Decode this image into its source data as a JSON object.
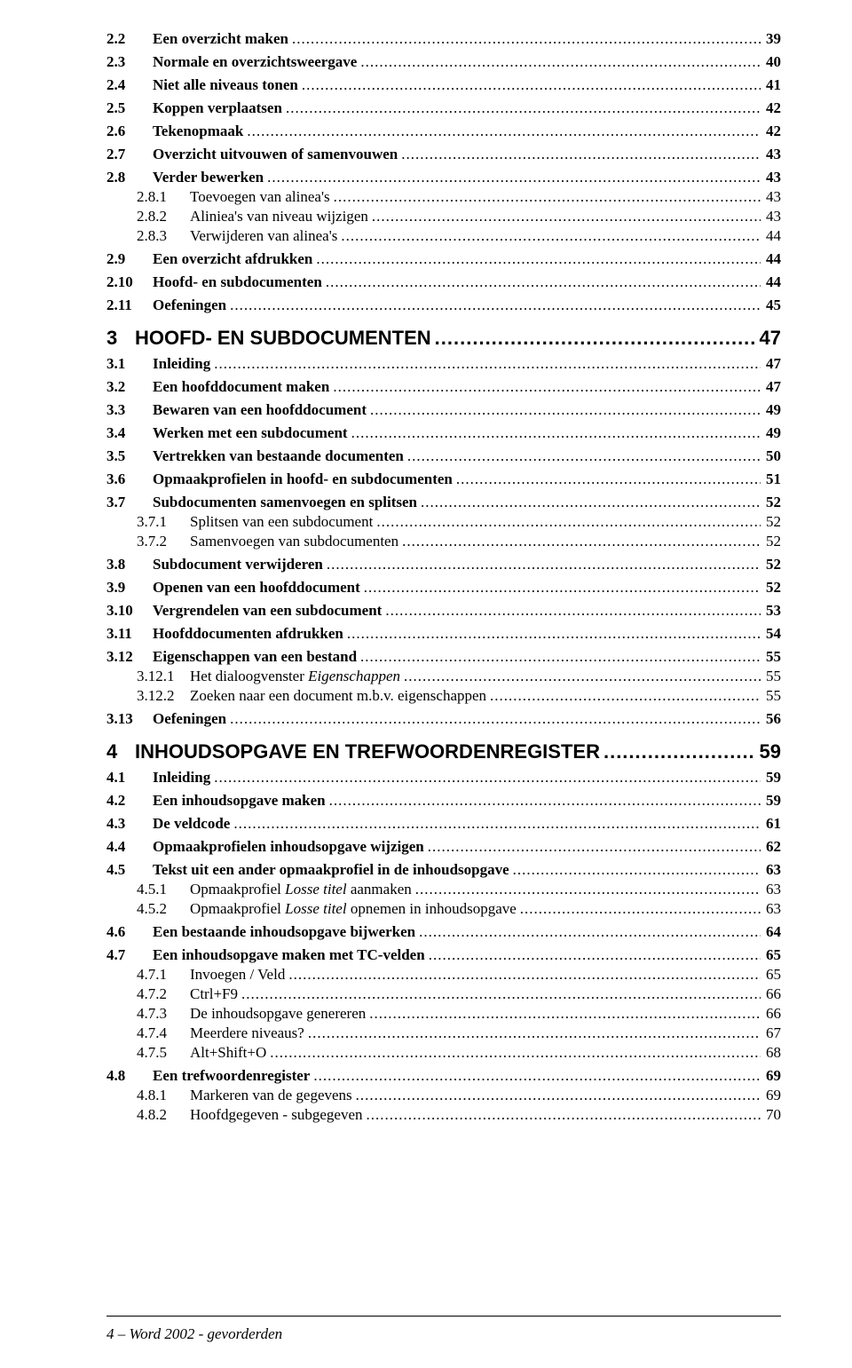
{
  "toc": [
    {
      "level": 2,
      "num": "2.2",
      "title": "Een overzicht maken",
      "page": "39"
    },
    {
      "level": 2,
      "num": "2.3",
      "title": "Normale en overzichtsweergave",
      "page": "40"
    },
    {
      "level": 2,
      "num": "2.4",
      "title": "Niet alle niveaus tonen",
      "page": "41"
    },
    {
      "level": 2,
      "num": "2.5",
      "title": "Koppen verplaatsen",
      "page": "42"
    },
    {
      "level": 2,
      "num": "2.6",
      "title": "Tekenopmaak",
      "page": "42"
    },
    {
      "level": 2,
      "num": "2.7",
      "title": "Overzicht uitvouwen of samenvouwen",
      "page": "43"
    },
    {
      "level": 2,
      "num": "2.8",
      "title": "Verder bewerken",
      "page": "43"
    },
    {
      "level": 3,
      "num": "2.8.1",
      "title": "Toevoegen van alinea's",
      "page": "43"
    },
    {
      "level": 3,
      "num": "2.8.2",
      "title": "Aliniea's van niveau wijzigen",
      "page": "43"
    },
    {
      "level": 3,
      "num": "2.8.3",
      "title": "Verwijderen van alinea's",
      "page": "44"
    },
    {
      "level": 2,
      "num": "2.9",
      "title": "Een overzicht afdrukken",
      "page": "44"
    },
    {
      "level": 2,
      "num": "2.10",
      "title": "Hoofd- en subdocumenten",
      "page": "44"
    },
    {
      "level": 2,
      "num": "2.11",
      "title": "Oefeningen",
      "page": "45"
    },
    {
      "level": 1,
      "num": "3",
      "title": "HOOFD- EN SUBDOCUMENTEN",
      "page": "47"
    },
    {
      "level": 2,
      "num": "3.1",
      "title": "Inleiding",
      "page": "47"
    },
    {
      "level": 2,
      "num": "3.2",
      "title": "Een hoofddocument maken",
      "page": "47"
    },
    {
      "level": 2,
      "num": "3.3",
      "title": "Bewaren van een hoofddocument",
      "page": "49"
    },
    {
      "level": 2,
      "num": "3.4",
      "title": "Werken met een subdocument",
      "page": "49"
    },
    {
      "level": 2,
      "num": "3.5",
      "title": "Vertrekken van bestaande documenten",
      "page": "50"
    },
    {
      "level": 2,
      "num": "3.6",
      "title": "Opmaakprofielen in hoofd- en subdocumenten",
      "page": "51"
    },
    {
      "level": 2,
      "num": "3.7",
      "title": "Subdocumenten samenvoegen en splitsen",
      "page": "52"
    },
    {
      "level": 3,
      "num": "3.7.1",
      "title": "Splitsen van een subdocument",
      "page": "52"
    },
    {
      "level": 3,
      "num": "3.7.2",
      "title": "Samenvoegen van subdocumenten",
      "page": "52"
    },
    {
      "level": 2,
      "num": "3.8",
      "title": "Subdocument verwijderen",
      "page": "52"
    },
    {
      "level": 2,
      "num": "3.9",
      "title": "Openen van een hoofddocument",
      "page": "52"
    },
    {
      "level": 2,
      "num": "3.10",
      "title": "Vergrendelen van een subdocument",
      "page": "53"
    },
    {
      "level": 2,
      "num": "3.11",
      "title": "Hoofddocumenten afdrukken",
      "page": "54"
    },
    {
      "level": 2,
      "num": "3.12",
      "title": "Eigenschappen van een bestand",
      "page": "55"
    },
    {
      "level": 3,
      "num": "3.12.1",
      "title": "Het dialoogvenster ",
      "italic_tail": "Eigenschappen",
      "page": "55"
    },
    {
      "level": 3,
      "num": "3.12.2",
      "title": "Zoeken naar een document m.b.v. eigenschappen",
      "page": "55"
    },
    {
      "level": 2,
      "num": "3.13",
      "title": "Oefeningen",
      "page": "56"
    },
    {
      "level": 1,
      "num": "4",
      "title": "INHOUDSOPGAVE EN TREFWOORDENREGISTER",
      "page": "59"
    },
    {
      "level": 2,
      "num": "4.1",
      "title": "Inleiding",
      "page": "59"
    },
    {
      "level": 2,
      "num": "4.2",
      "title": "Een inhoudsopgave maken",
      "page": "59"
    },
    {
      "level": 2,
      "num": "4.3",
      "title": "De veldcode",
      "page": "61"
    },
    {
      "level": 2,
      "num": "4.4",
      "title": "Opmaakprofielen inhoudsopgave wijzigen",
      "page": "62"
    },
    {
      "level": 2,
      "num": "4.5",
      "title": "Tekst uit een ander opmaakprofiel in de inhoudsopgave",
      "page": "63"
    },
    {
      "level": 3,
      "num": "4.5.1",
      "title": "Opmaakprofiel ",
      "italic_mid": "Losse titel",
      "title_tail": " aanmaken",
      "page": "63"
    },
    {
      "level": 3,
      "num": "4.5.2",
      "title": "Opmaakprofiel ",
      "italic_mid": "Losse titel",
      "title_tail": " opnemen in inhoudsopgave",
      "page": "63"
    },
    {
      "level": 2,
      "num": "4.6",
      "title": "Een bestaande inhoudsopgave bijwerken",
      "page": "64"
    },
    {
      "level": 2,
      "num": "4.7",
      "title": "Een inhoudsopgave maken met TC-velden",
      "page": "65"
    },
    {
      "level": 3,
      "num": "4.7.1",
      "title": "Invoegen / Veld",
      "page": "65"
    },
    {
      "level": 3,
      "num": "4.7.2",
      "title": "Ctrl+F9",
      "page": "66"
    },
    {
      "level": 3,
      "num": "4.7.3",
      "title": "De inhoudsopgave genereren",
      "page": "66"
    },
    {
      "level": 3,
      "num": "4.7.4",
      "title": "Meerdere niveaus?",
      "page": "67"
    },
    {
      "level": 3,
      "num": "4.7.5",
      "title": "Alt+Shift+O",
      "page": "68"
    },
    {
      "level": 2,
      "num": "4.8",
      "title": "Een trefwoordenregister",
      "page": "69"
    },
    {
      "level": 3,
      "num": "4.8.1",
      "title": "Markeren van de gegevens",
      "page": "69"
    },
    {
      "level": 3,
      "num": "4.8.2",
      "title": "Hoofdgegeven - subgegeven",
      "page": "70"
    }
  ],
  "footer": {
    "page_number": "4",
    "separator": " – ",
    "doc_title": "Word 2002 - gevorderden"
  },
  "colors": {
    "background": "#ffffff",
    "text": "#000000",
    "rule": "#000000"
  },
  "fonts": {
    "heading": "Arial",
    "body": "Times New Roman",
    "lvl1_size_pt": 16,
    "lvl2_size_pt": 12.5,
    "lvl3_size_pt": 12.5,
    "footer_size_pt": 12.5
  }
}
